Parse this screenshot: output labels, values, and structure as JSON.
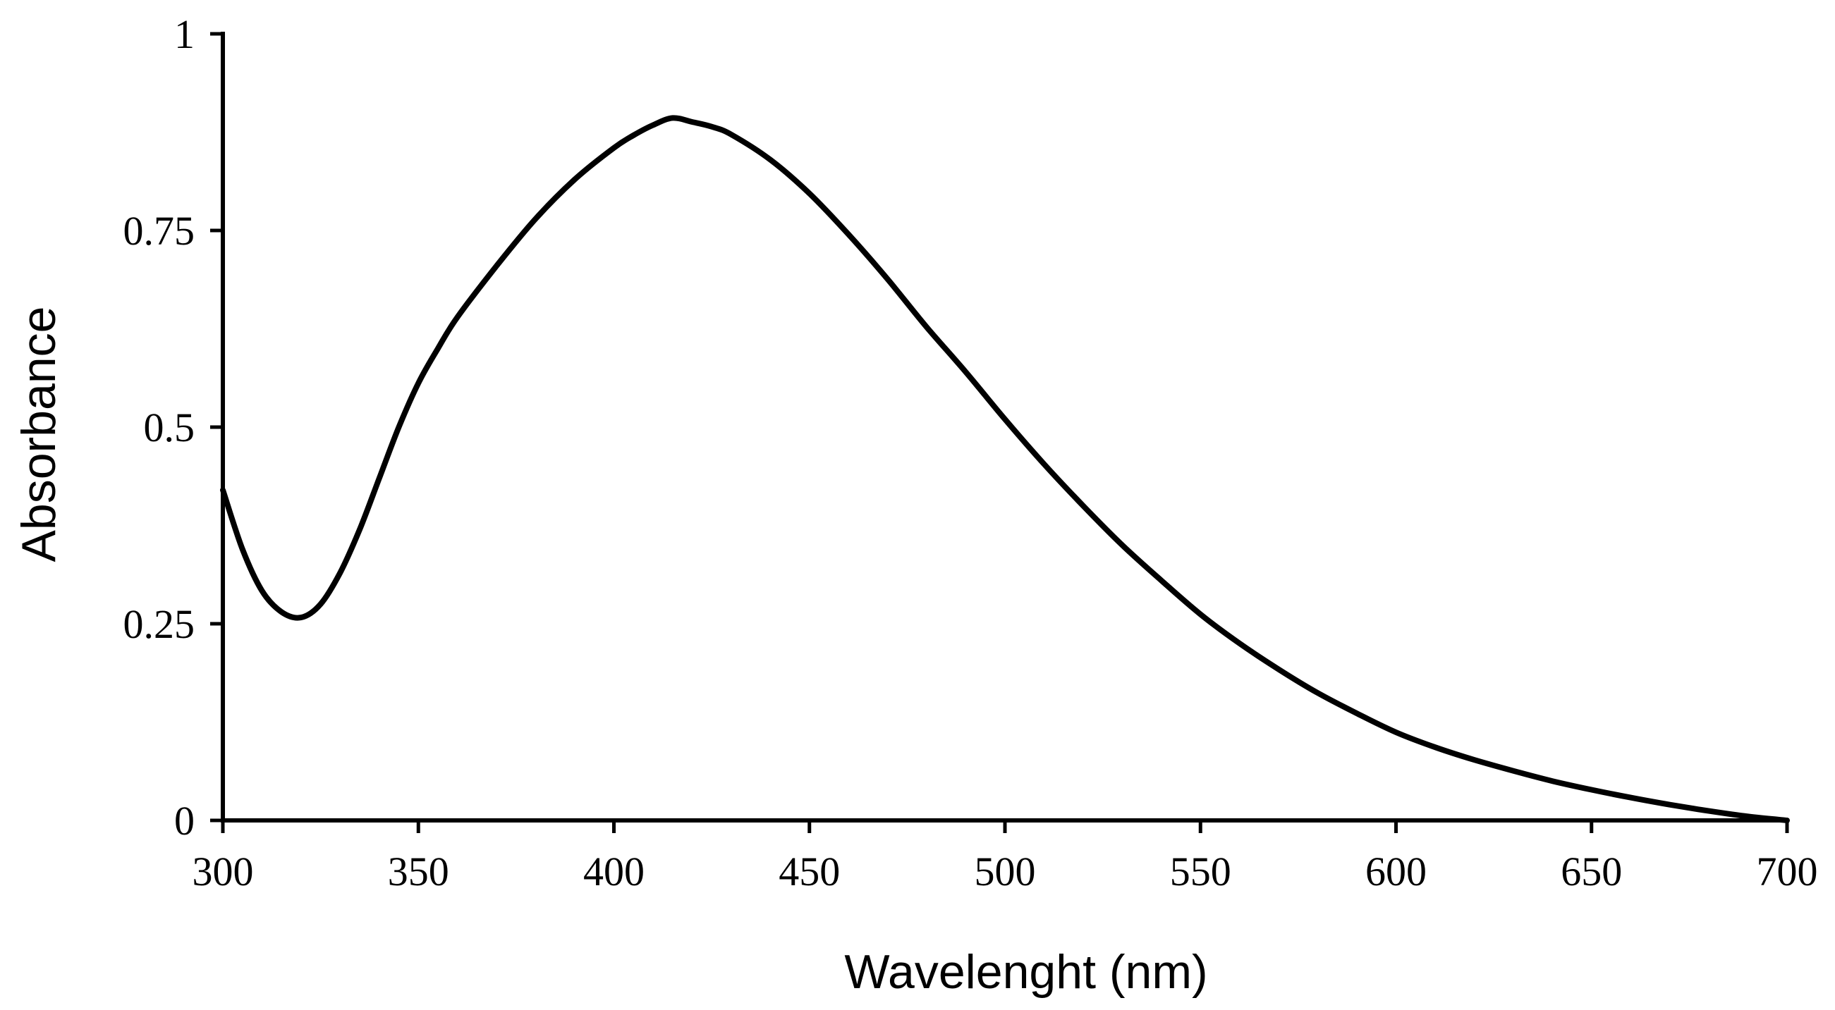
{
  "chart_data": {
    "type": "line",
    "title": "",
    "xlabel": "Wavelenght (nm)",
    "ylabel": "Absorbance",
    "xlim": [
      300,
      700
    ],
    "ylim": [
      0,
      1
    ],
    "x_ticks": [
      300,
      350,
      400,
      450,
      500,
      550,
      600,
      650,
      700
    ],
    "x_tick_labels": [
      "300",
      "350",
      "400",
      "450",
      "500",
      "550",
      "600",
      "650",
      "700"
    ],
    "y_ticks": [
      0,
      0.25,
      0.5,
      0.75,
      1
    ],
    "y_tick_labels": [
      "0",
      "0.25",
      "0.5",
      "0.75",
      "1"
    ],
    "grid": false,
    "legend": "none",
    "series": [
      {
        "name": "Absorbance",
        "color": "#000000",
        "x": [
          300,
          305,
          310,
          315,
          320,
          325,
          330,
          335,
          340,
          345,
          350,
          355,
          360,
          370,
          380,
          390,
          400,
          405,
          410,
          415,
          420,
          425,
          430,
          440,
          450,
          460,
          470,
          480,
          490,
          500,
          510,
          520,
          530,
          540,
          550,
          560,
          570,
          580,
          590,
          600,
          610,
          620,
          630,
          640,
          650,
          660,
          670,
          680,
          690,
          700
        ],
        "y": [
          0.42,
          0.345,
          0.292,
          0.265,
          0.258,
          0.275,
          0.315,
          0.37,
          0.435,
          0.5,
          0.556,
          0.6,
          0.64,
          0.705,
          0.765,
          0.815,
          0.855,
          0.871,
          0.884,
          0.893,
          0.888,
          0.882,
          0.872,
          0.84,
          0.797,
          0.745,
          0.688,
          0.627,
          0.57,
          0.51,
          0.453,
          0.4,
          0.35,
          0.305,
          0.262,
          0.225,
          0.192,
          0.162,
          0.136,
          0.112,
          0.093,
          0.077,
          0.063,
          0.05,
          0.039,
          0.029,
          0.02,
          0.012,
          0.005,
          0.0
        ]
      }
    ]
  }
}
